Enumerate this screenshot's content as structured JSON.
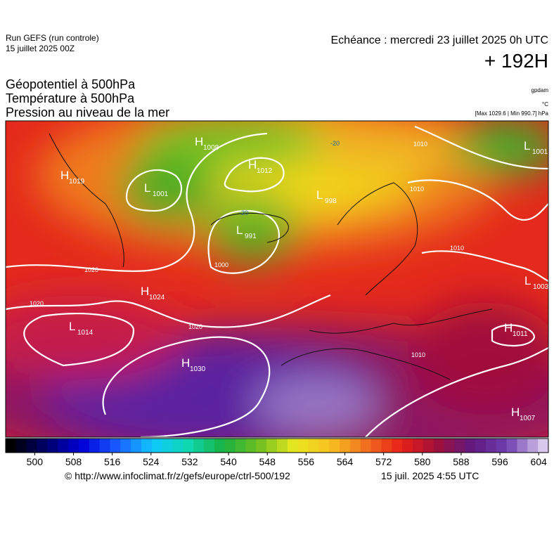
{
  "header": {
    "run": "Run GEFS (run controle)",
    "run_date": "15 juillet 2025 00Z",
    "valid": "Echéance : mercredi 23 juillet 2025 0h UTC",
    "lead": "+ 192H",
    "titles": [
      "Géopotentiel à 500hPa",
      "Température à 500hPa",
      "Pression au niveau de la mer"
    ],
    "units": [
      "gpdam",
      "°C",
      "[Max 1029.6 | Min 990.7] hPa"
    ]
  },
  "centers": [
    {
      "kind": "H",
      "value": "1019"
    },
    {
      "kind": "L",
      "value": "1001"
    },
    {
      "kind": "H",
      "value": "1008"
    },
    {
      "kind": "H",
      "value": "1012"
    },
    {
      "kind": "L",
      "value": "998"
    },
    {
      "kind": "L",
      "value": "991"
    },
    {
      "kind": "L",
      "value": "1001"
    },
    {
      "kind": "H",
      "value": "1024"
    },
    {
      "kind": "L",
      "value": "1014"
    },
    {
      "kind": "H",
      "value": "1030"
    },
    {
      "kind": "L",
      "value": "1003"
    },
    {
      "kind": "H",
      "value": "1011"
    },
    {
      "kind": "H",
      "value": "1007"
    }
  ],
  "contour_labels": [
    "1020",
    "1020",
    "1020",
    "1000",
    "1010",
    "1010",
    "1010",
    "1010",
    "-20",
    "-20"
  ],
  "colorbar": {
    "range": [
      494,
      606
    ],
    "ticks": [
      500,
      508,
      516,
      524,
      532,
      540,
      548,
      556,
      564,
      572,
      580,
      588,
      596,
      604
    ]
  },
  "footer": {
    "source": "© http://www.infoclimat.fr/z/gefs/europe/ctrl-500/192",
    "issued": "15 juil. 2025  4:55 UTC"
  }
}
